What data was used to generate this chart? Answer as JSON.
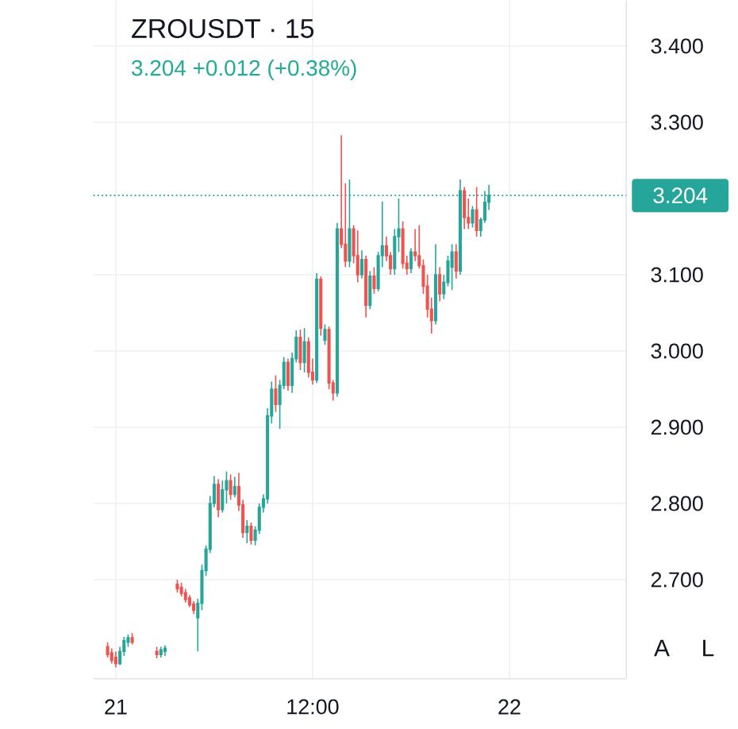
{
  "chart_data": {
    "type": "candlestick",
    "title": "ZROUSDT · 15",
    "subtitle": "3.204 +0.012 (+0.38%)",
    "categories": [
      null,
      null,
      null,
      null,
      null,
      "21",
      null,
      null,
      null,
      null,
      null,
      null,
      null,
      null,
      null,
      null,
      null,
      null,
      null,
      null,
      null,
      null,
      null,
      null,
      null,
      null,
      null,
      null,
      null,
      null,
      null,
      null,
      null,
      null,
      null,
      null,
      null,
      null,
      null,
      null,
      null,
      null,
      null,
      null,
      null,
      null,
      null,
      null,
      null,
      null,
      null,
      null,
      null,
      "12:00",
      null,
      null,
      null,
      null,
      null,
      null,
      null,
      null,
      null,
      null,
      null,
      null,
      null,
      null,
      null,
      null,
      null,
      null,
      null,
      null,
      null,
      null,
      null,
      null,
      null,
      null,
      null,
      null,
      null,
      null,
      null,
      null,
      null,
      null,
      null,
      null,
      null,
      null,
      null,
      null,
      null,
      null,
      null,
      null,
      null,
      null,
      null,
      "22",
      null,
      null,
      null,
      null,
      null,
      null,
      null,
      null,
      null,
      null,
      null,
      null,
      null,
      null,
      null,
      null,
      null,
      null,
      null,
      null,
      null,
      null,
      null,
      null,
      null,
      null,
      null,
      null
    ],
    "ohlc": [
      null,
      null,
      null,
      [
        2.612,
        2.618,
        2.598,
        2.602
      ],
      [
        2.604,
        2.61,
        2.59,
        2.594
      ],
      [
        2.598,
        2.606,
        2.585,
        2.59
      ],
      [
        2.59,
        2.612,
        2.588,
        2.606
      ],
      [
        2.606,
        2.625,
        2.6,
        2.62
      ],
      [
        2.618,
        2.628,
        2.612,
        2.624
      ],
      [
        2.624,
        2.63,
        2.615,
        2.618
      ],
      null,
      null,
      null,
      null,
      null,
      [
        2.606,
        2.612,
        2.597,
        2.602
      ],
      [
        2.602,
        2.612,
        2.598,
        2.608
      ],
      [
        2.606,
        2.614,
        2.6,
        2.61
      ],
      null,
      null,
      [
        2.694,
        2.7,
        2.683,
        2.688
      ],
      [
        2.69,
        2.696,
        2.678,
        2.682
      ],
      [
        2.683,
        2.688,
        2.67,
        2.674
      ],
      [
        2.676,
        2.68,
        2.664,
        2.667
      ],
      [
        2.668,
        2.672,
        2.655,
        2.66
      ],
      [
        2.65,
        2.675,
        2.606,
        2.669
      ],
      [
        2.669,
        2.72,
        2.66,
        2.712
      ],
      [
        2.712,
        2.745,
        2.705,
        2.74
      ],
      [
        2.74,
        2.81,
        2.735,
        2.8
      ],
      [
        2.8,
        2.836,
        2.795,
        2.825
      ],
      [
        2.825,
        2.832,
        2.782,
        2.792
      ],
      [
        2.792,
        2.83,
        2.788,
        2.818
      ],
      [
        2.818,
        2.842,
        2.8,
        2.83
      ],
      [
        2.83,
        2.838,
        2.805,
        2.812
      ],
      [
        2.812,
        2.835,
        2.808,
        2.822
      ],
      [
        2.822,
        2.84,
        2.79,
        2.798
      ],
      [
        2.798,
        2.805,
        2.755,
        2.762
      ],
      [
        2.762,
        2.778,
        2.748,
        2.77
      ],
      [
        2.77,
        2.775,
        2.746,
        2.752
      ],
      [
        2.752,
        2.77,
        2.745,
        2.765
      ],
      [
        2.765,
        2.8,
        2.76,
        2.795
      ],
      [
        2.795,
        2.812,
        2.788,
        2.806
      ],
      [
        2.806,
        2.925,
        2.8,
        2.915
      ],
      [
        2.915,
        2.96,
        2.905,
        2.95
      ],
      [
        2.95,
        2.968,
        2.92,
        2.93
      ],
      [
        2.93,
        2.962,
        2.898,
        2.955
      ],
      [
        2.955,
        2.992,
        2.95,
        2.985
      ],
      [
        2.985,
        2.99,
        2.948,
        2.955
      ],
      [
        2.955,
        2.998,
        2.945,
        2.99
      ],
      [
        2.99,
        3.027,
        2.985,
        3.018
      ],
      [
        3.018,
        3.028,
        2.975,
        2.985
      ],
      [
        2.985,
        3.03,
        2.972,
        3.012
      ],
      [
        3.012,
        3.018,
        2.965,
        2.972
      ],
      [
        2.972,
        2.99,
        2.956,
        2.962
      ],
      [
        2.962,
        3.102,
        2.958,
        3.094
      ],
      [
        3.094,
        3.098,
        3.02,
        3.03
      ],
      [
        3.014,
        3.035,
        3.008,
        3.028
      ],
      [
        3.028,
        3.032,
        2.95,
        2.958
      ],
      [
        2.958,
        2.962,
        2.935,
        2.945
      ],
      [
        2.945,
        3.168,
        2.94,
        3.16
      ],
      [
        3.16,
        3.283,
        3.135,
        3.14
      ],
      [
        3.14,
        3.22,
        3.11,
        3.118
      ],
      [
        3.118,
        3.225,
        3.11,
        3.16
      ],
      [
        3.16,
        3.165,
        3.115,
        3.125
      ],
      [
        3.125,
        3.158,
        3.09,
        3.1
      ],
      [
        3.1,
        3.132,
        3.095,
        3.12
      ],
      [
        3.12,
        3.125,
        3.044,
        3.06
      ],
      [
        3.06,
        3.105,
        3.055,
        3.098
      ],
      [
        3.098,
        3.11,
        3.075,
        3.082
      ],
      [
        3.082,
        3.13,
        3.078,
        3.125
      ],
      [
        3.125,
        3.196,
        3.11,
        3.138
      ],
      [
        3.138,
        3.15,
        3.118,
        3.125
      ],
      [
        3.125,
        3.13,
        3.1,
        3.108
      ],
      [
        3.108,
        3.16,
        3.1,
        3.15
      ],
      [
        3.15,
        3.2,
        3.13,
        3.16
      ],
      [
        3.16,
        3.17,
        3.108,
        3.115
      ],
      [
        3.115,
        3.125,
        3.1,
        3.108
      ],
      [
        3.108,
        3.135,
        3.102,
        3.13
      ],
      [
        3.13,
        3.16,
        3.118,
        3.125
      ],
      [
        3.125,
        3.165,
        3.108,
        3.112
      ],
      [
        3.112,
        3.12,
        3.075,
        3.085
      ],
      [
        3.085,
        3.1,
        3.044,
        3.055
      ],
      [
        3.055,
        3.07,
        3.023,
        3.04
      ],
      [
        3.04,
        3.14,
        3.035,
        3.1
      ],
      [
        3.1,
        3.11,
        3.065,
        3.075
      ],
      [
        3.075,
        3.1,
        3.068,
        3.09
      ],
      [
        3.09,
        3.125,
        3.085,
        3.118
      ],
      [
        3.11,
        3.14,
        3.08,
        3.13
      ],
      [
        3.13,
        3.14,
        3.095,
        3.105
      ],
      [
        3.105,
        3.225,
        3.1,
        3.21
      ],
      [
        3.21,
        3.215,
        3.16,
        3.175
      ],
      [
        3.175,
        3.2,
        3.16,
        3.168
      ],
      [
        3.168,
        3.19,
        3.162,
        3.185
      ],
      [
        3.185,
        3.215,
        3.15,
        3.158
      ],
      [
        3.158,
        3.175,
        3.15,
        3.172
      ],
      [
        3.172,
        3.21,
        3.168,
        3.195
      ],
      [
        3.195,
        3.218,
        3.185,
        3.204
      ],
      null,
      null,
      null,
      null,
      null,
      null,
      null,
      null,
      null,
      null,
      null,
      null,
      null,
      null,
      null,
      null,
      null,
      null,
      null,
      null,
      null,
      null,
      null,
      null,
      null,
      null,
      null,
      null,
      null,
      null,
      null,
      null,
      null
    ],
    "colors": [
      null,
      null,
      null,
      "#ef5350",
      "#ef5350",
      "#ef5350",
      "#26a69a",
      "#26a69a",
      "#26a69a",
      "#ef5350",
      null,
      null,
      null,
      null,
      null,
      "#ef5350",
      "#26a69a",
      "#26a69a",
      null,
      null,
      "#ef5350",
      "#ef5350",
      "#ef5350",
      "#ef5350",
      "#ef5350",
      "#26a69a",
      "#26a69a",
      "#26a69a",
      "#26a69a",
      "#26a69a",
      "#ef5350",
      "#26a69a",
      "#26a69a",
      "#ef5350",
      "#26a69a",
      "#ef5350",
      "#ef5350",
      "#26a69a",
      "#ef5350",
      "#26a69a",
      "#26a69a",
      "#26a69a",
      "#26a69a",
      "#26a69a",
      "#ef5350",
      "#26a69a",
      "#26a69a",
      "#ef5350",
      "#26a69a",
      "#26a69a",
      "#ef5350",
      "#26a69a",
      "#ef5350",
      "#ef5350",
      "#26a69a",
      "#ef5350",
      "#26a69a",
      "#ef5350",
      "#ef5350",
      "#26a69a",
      "#ef5350",
      "#ef5350",
      "#26a69a",
      "#ef5350",
      "#ef5350",
      "#26a69a",
      "#ef5350",
      "#26a69a",
      "#ef5350",
      "#26a69a",
      "#26a69a",
      "#ef5350",
      "#ef5350",
      "#26a69a",
      "#26a69a",
      "#ef5350",
      "#ef5350",
      "#26a69a",
      "#ef5350",
      "#ef5350",
      "#ef5350",
      "#ef5350",
      "#ef5350",
      "#26a69a",
      "#ef5350",
      "#26a69a",
      "#26a69a",
      "#26a69a",
      "#ef5350",
      "#26a69a",
      "#ef5350",
      "#ef5350",
      "#26a69a",
      "#ef5350",
      "#26a69a",
      "#26a69a",
      "#26a69a",
      null,
      null,
      null,
      null,
      null,
      null,
      null,
      null,
      null,
      null,
      null,
      null,
      null,
      null,
      null,
      null,
      null,
      null,
      null,
      null,
      null,
      null,
      null,
      null,
      null,
      null,
      null,
      null,
      null,
      null,
      null,
      null,
      null
    ],
    "ylim": [
      2.57,
      3.46
    ],
    "yticks": [
      {
        "value": 2.7,
        "label": "2.700"
      },
      {
        "value": 2.8,
        "label": "2.800"
      },
      {
        "value": 2.9,
        "label": "2.900"
      },
      {
        "value": 3.0,
        "label": "3.000"
      },
      {
        "value": 3.1,
        "label": "3.100"
      },
      {
        "value": 3.3,
        "label": "3.300"
      },
      {
        "value": 3.4,
        "label": "3.400"
      }
    ],
    "grid": true,
    "ref_lines": [
      {
        "axis": "y",
        "value": 3.204,
        "label": "3.204",
        "color": "#26a69a",
        "line_style": "dotted"
      }
    ],
    "annotations": [
      "A",
      "L"
    ]
  }
}
